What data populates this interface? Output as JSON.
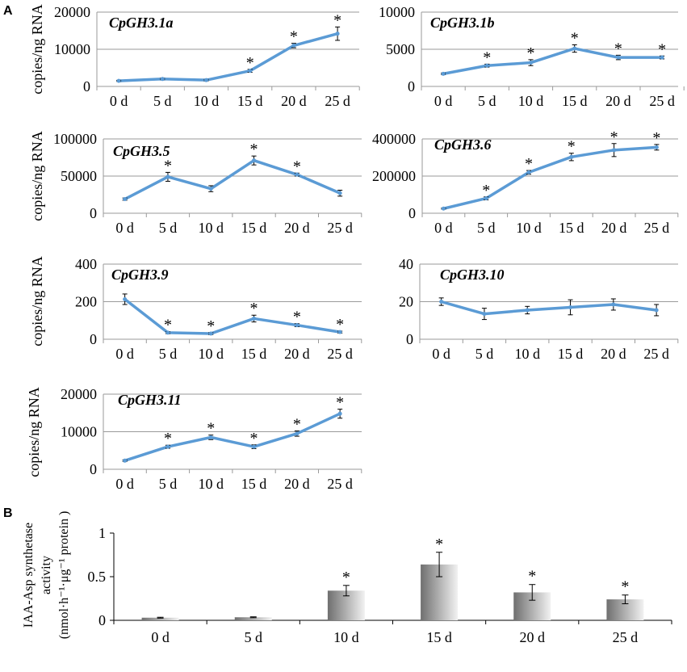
{
  "panel_labels": {
    "a": "A",
    "b": "B"
  },
  "shared_ylabel": "copies/ng RNA",
  "colors": {
    "line": "#5b9bd5",
    "axis": "#9a9a9a",
    "text": "#000000",
    "bar_dark": "#6f6f6f",
    "bar_light": "#f2f2f2"
  },
  "chart_data": [
    {
      "type": "line",
      "title": "CpGH3.1a",
      "ylabel": "copies/ng RNA",
      "categories": [
        "0 d",
        "5 d",
        "10 d",
        "15 d",
        "20 d",
        "25 d"
      ],
      "values": [
        1500,
        2000,
        1700,
        4200,
        11000,
        14200
      ],
      "errors": [
        150,
        200,
        200,
        400,
        600,
        1800
      ],
      "significant": [
        false,
        false,
        false,
        true,
        true,
        true
      ],
      "ylim": [
        0,
        20000
      ],
      "yticks": [
        "0",
        "10000",
        "20000"
      ],
      "grid": true
    },
    {
      "type": "line",
      "title": "CpGH3.1b",
      "ylabel": "",
      "categories": [
        "0 d",
        "5 d",
        "10 d",
        "15 d",
        "20 d",
        "25 d"
      ],
      "values": [
        1700,
        2800,
        3200,
        5100,
        3900,
        3900
      ],
      "errors": [
        100,
        200,
        400,
        500,
        300,
        200
      ],
      "significant": [
        false,
        true,
        true,
        true,
        true,
        true
      ],
      "ylim": [
        0,
        10000
      ],
      "yticks": [
        "0",
        "5000",
        "10000"
      ],
      "grid": true
    },
    {
      "type": "line",
      "title": "CpGH3.5",
      "ylabel": "copies/ng RNA",
      "categories": [
        "0 d",
        "5 d",
        "10 d",
        "15 d",
        "20 d",
        "25 d"
      ],
      "values": [
        19000,
        49000,
        33000,
        71000,
        52000,
        27000
      ],
      "errors": [
        1500,
        6000,
        4000,
        6000,
        2000,
        4000
      ],
      "significant": [
        false,
        true,
        false,
        true,
        true,
        false
      ],
      "ylim": [
        0,
        100000
      ],
      "yticks": [
        "0",
        "50000",
        "100000"
      ],
      "grid": true
    },
    {
      "type": "line",
      "title": "CpGH3.6",
      "ylabel": "",
      "categories": [
        "0 d",
        "5 d",
        "10 d",
        "15 d",
        "20 d",
        "25 d"
      ],
      "values": [
        25000,
        80000,
        220000,
        303000,
        340000,
        355000
      ],
      "errors": [
        3000,
        8000,
        10000,
        20000,
        35000,
        15000
      ],
      "significant": [
        false,
        true,
        true,
        true,
        true,
        true
      ],
      "ylim": [
        0,
        400000
      ],
      "yticks": [
        "0",
        "200000",
        "400000"
      ],
      "grid": true
    },
    {
      "type": "line",
      "title": "CpGH3.9",
      "ylabel": "copies/ng RNA",
      "categories": [
        "0 d",
        "5 d",
        "10 d",
        "15 d",
        "20 d",
        "25 d"
      ],
      "values": [
        213,
        35,
        30,
        110,
        75,
        38
      ],
      "errors": [
        28,
        5,
        5,
        18,
        8,
        5
      ],
      "significant": [
        false,
        true,
        true,
        true,
        true,
        true
      ],
      "ylim": [
        0,
        400
      ],
      "yticks": [
        "0",
        "200",
        "400"
      ],
      "grid": true
    },
    {
      "type": "line",
      "title": "CpGH3.10",
      "ylabel": "",
      "categories": [
        "0 d",
        "5 d",
        "10 d",
        "15 d",
        "20 d",
        "25 d"
      ],
      "values": [
        20,
        13.5,
        15.5,
        17,
        18.5,
        15.5
      ],
      "errors": [
        2,
        3,
        2,
        4,
        3,
        3
      ],
      "significant": [
        false,
        false,
        false,
        false,
        false,
        false
      ],
      "ylim": [
        0,
        40
      ],
      "yticks": [
        "0",
        "20",
        "40"
      ],
      "grid": true
    },
    {
      "type": "line",
      "title": "CpGH3.11",
      "ylabel": "copies/ng RNA",
      "categories": [
        "0 d",
        "5 d",
        "10 d",
        "15 d",
        "20 d",
        "25 d"
      ],
      "values": [
        2300,
        6000,
        8500,
        6000,
        9500,
        14800
      ],
      "errors": [
        200,
        400,
        600,
        500,
        700,
        1200
      ],
      "significant": [
        false,
        true,
        true,
        true,
        true,
        true
      ],
      "ylim": [
        0,
        20000
      ],
      "yticks": [
        "0",
        "10000",
        "20000"
      ],
      "grid": true
    },
    {
      "type": "bar",
      "title": "",
      "ylabel_lines": [
        "IAA-Asp synthetase",
        "activity",
        "(nmol·h⁻¹·μg⁻¹ protein )"
      ],
      "categories": [
        "0 d",
        "5 d",
        "10 d",
        "15 d",
        "20 d",
        "25 d"
      ],
      "values": [
        0.03,
        0.035,
        0.34,
        0.64,
        0.32,
        0.24
      ],
      "errors": [
        0.005,
        0.005,
        0.06,
        0.14,
        0.09,
        0.05
      ],
      "significant": [
        false,
        false,
        true,
        true,
        true,
        true
      ],
      "ylim": [
        0,
        1
      ],
      "yticks": [
        "0",
        "0.5",
        "1"
      ],
      "grid": false
    }
  ]
}
